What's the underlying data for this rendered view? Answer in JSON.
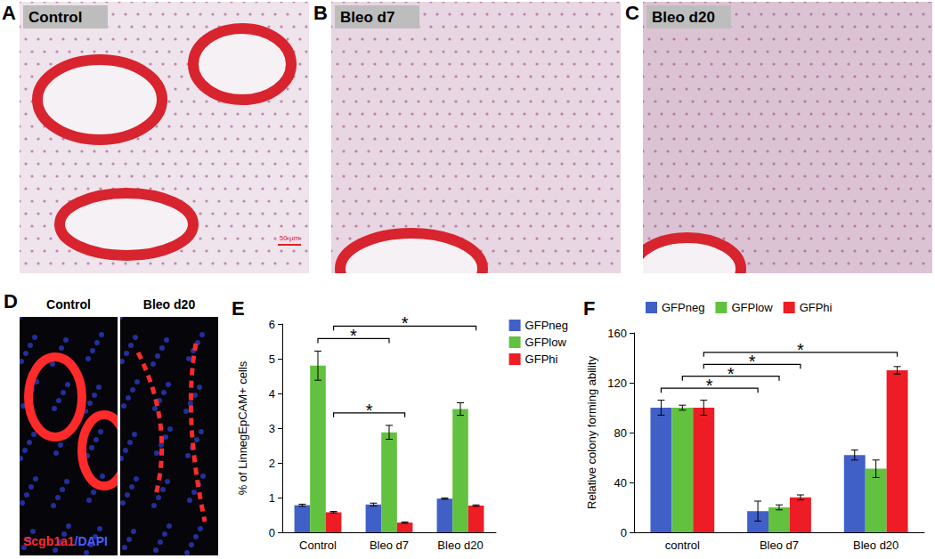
{
  "panels": [
    {
      "panel": "A",
      "label": "Control",
      "scale_bar": "50 µm"
    },
    {
      "panel": "B",
      "label": "Bleo d7"
    },
    {
      "panel": "C",
      "label": "Bleo d20"
    },
    {
      "panel": "D",
      "labels": [
        "Control",
        "Bleo d20"
      ],
      "stain": [
        {
          "text": "Scgb1a1",
          "color": "#ff2a2a"
        },
        {
          "text": "/DAPI",
          "color": "#4a5cff"
        }
      ]
    }
  ],
  "chart_data": [
    {
      "panel": "E",
      "type": "bar",
      "categories": [
        "Control",
        "Bleo d7",
        "Bleo d20"
      ],
      "y_label": "% of LinnegEpCAM+ cells",
      "ylim": [
        0,
        6
      ],
      "yticks": [
        0,
        1,
        2,
        3,
        4,
        5,
        6
      ],
      "grid": false,
      "legend": "right",
      "series": [
        {
          "name": "GFPneg",
          "color": "#4060c8",
          "values": [
            0.78,
            0.8,
            0.97
          ],
          "errors": [
            0.03,
            0.04,
            0.02
          ]
        },
        {
          "name": "GFPlow",
          "color": "#62c13f",
          "values": [
            4.8,
            2.88,
            3.55
          ],
          "errors": [
            0.42,
            0.2,
            0.18
          ]
        },
        {
          "name": "GFPhi",
          "color": "#ee1c24",
          "values": [
            0.58,
            0.28,
            0.77
          ],
          "errors": [
            0.02,
            0.02,
            0.02
          ]
        }
      ],
      "annotations": [
        {
          "text": "*",
          "from": [
            "Control",
            "GFPhi"
          ],
          "to": [
            "Bleo d7",
            "GFPhi"
          ]
        },
        {
          "text": "*",
          "from": [
            "Control",
            "GFPlow"
          ],
          "to": [
            "Bleo d7",
            "GFPlow"
          ]
        },
        {
          "text": "*",
          "from": [
            "Control",
            "GFPhi"
          ],
          "to": [
            "Bleo d20",
            "GFPhi"
          ]
        }
      ]
    },
    {
      "panel": "F",
      "type": "bar",
      "categories": [
        "control",
        "Bleo d7",
        "Bleo d20"
      ],
      "y_label": "Relative colony forming ability",
      "ylim": [
        0,
        160
      ],
      "yticks": [
        0,
        40,
        80,
        120,
        160
      ],
      "grid": false,
      "legend": "top",
      "series": [
        {
          "name": "GFPneg",
          "color": "#4060c8",
          "values": [
            100,
            17,
            62
          ],
          "errors": [
            6,
            8,
            4
          ]
        },
        {
          "name": "GFPlow",
          "color": "#62c13f",
          "values": [
            100,
            20,
            51
          ],
          "errors": [
            2,
            2,
            7
          ]
        },
        {
          "name": "GFPhi",
          "color": "#ee1c24",
          "values": [
            100,
            28,
            130
          ],
          "errors": [
            6,
            2,
            3
          ]
        }
      ],
      "annotations": [
        {
          "text": "*",
          "from": [
            "control",
            "GFPneg"
          ],
          "to": [
            "Bleo d7",
            "GFPneg"
          ]
        },
        {
          "text": "*",
          "from": [
            "control",
            "GFPlow"
          ],
          "to": [
            "Bleo d7",
            "GFPlow"
          ]
        },
        {
          "text": "*",
          "from": [
            "control",
            "GFPhi"
          ],
          "to": [
            "Bleo d7",
            "GFPhi"
          ]
        },
        {
          "text": "*",
          "from": [
            "control",
            "GFPhi"
          ],
          "to": [
            "Bleo d20",
            "GFPhi"
          ]
        }
      ]
    }
  ]
}
